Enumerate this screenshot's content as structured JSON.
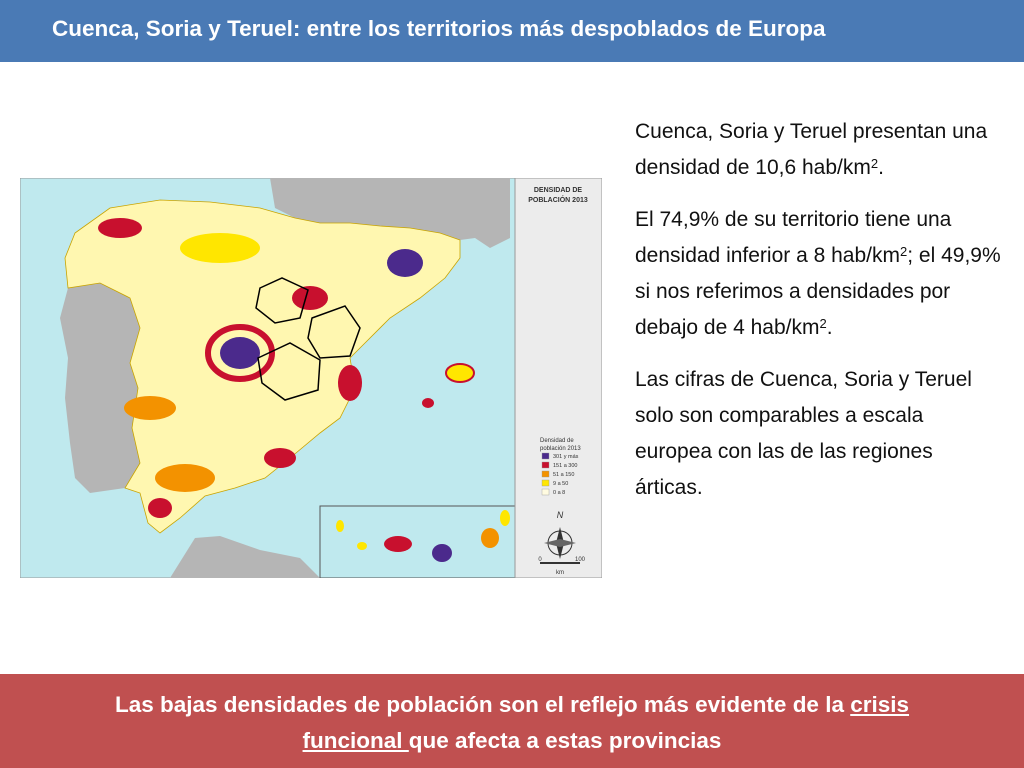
{
  "header": {
    "title": "Cuenca, Soria y Teruel: entre los territorios más despoblados de Europa"
  },
  "map": {
    "legend_title_line1": "DENSIDAD DE",
    "legend_title_line2": "POBLACIÓN 2013",
    "legend_heading_line1": "Densidad de",
    "legend_heading_line2": "población 2013",
    "legend_items": [
      {
        "label": "301 y más",
        "color": "#4b2a8c"
      },
      {
        "label": "151 a 300",
        "color": "#c8102e"
      },
      {
        "label": "51 a 150",
        "color": "#f39200"
      },
      {
        "label": "9 a 50",
        "color": "#ffe600"
      },
      {
        "label": "0 a 8",
        "color": "#fffbe0"
      }
    ],
    "compass_label": "N",
    "scale_min": "0",
    "scale_max": "100",
    "scale_unit": "km",
    "colors": {
      "sea": "#bfe9ee",
      "land_other": "#b5b5b5",
      "land_spain": "#fff7b0"
    }
  },
  "text": {
    "p1_a": "Cuenca, Soria y Teruel presentan una densidad de 10,6 hab/km",
    "p1_sup": "2",
    "p1_b": ".",
    "p2_a": "El 74,9% de su territorio tiene una densidad inferior a 8 hab/km",
    "p2_sup1": "2",
    "p2_b": "; el 49,9% si nos referimos a densidades por debajo de 4 hab/km",
    "p2_sup2": "2",
    "p2_c": ".",
    "p3_a": "Las cifras de Cuenca, Soria y Teruel solo son comparables a escala europea con las de las regiones árticas",
    "p3_b": "."
  },
  "footer": {
    "part1": "Las bajas densidades de población son el reflejo más evidente de la ",
    "link1": "crisis",
    "link2": "funcional ",
    "part2": "que afecta a estas provincias",
    "colors": {
      "band": "#c05050",
      "header": "#4a7ab5"
    }
  }
}
